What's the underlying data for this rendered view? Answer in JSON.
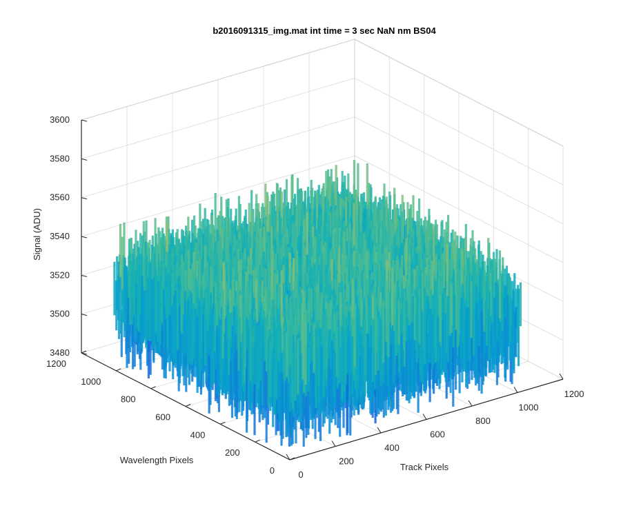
{
  "chart_data": {
    "type": "surface",
    "title": "b2016091315_img.mat int time = 3 sec  NaN nm BS04",
    "xlabel": "Track Pixels",
    "ylabel": "Wavelength Pixels",
    "zlabel": "Signal (ADU)",
    "xlim": [
      0,
      1200
    ],
    "ylim": [
      0,
      1200
    ],
    "zlim": [
      3480,
      3600
    ],
    "x_ticks": [
      "0",
      "200",
      "400",
      "600",
      "800",
      "1000",
      "1200"
    ],
    "y_ticks": [
      "0",
      "200",
      "400",
      "600",
      "800",
      "1000",
      "1200"
    ],
    "z_ticks": [
      "3480",
      "3500",
      "3520",
      "3540",
      "3560",
      "3580",
      "3600"
    ],
    "data_extent": {
      "x": [
        1,
        1024
      ],
      "y": [
        1,
        1024
      ]
    },
    "signal_mean": 3520,
    "signal_range": [
      3490,
      3580
    ],
    "colormap": "parula",
    "grid": true
  }
}
